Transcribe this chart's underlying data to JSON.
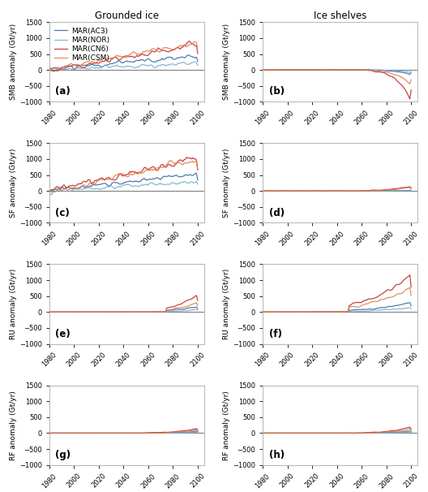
{
  "title_left": "Grounded ice",
  "title_right": "Ice shelves",
  "colors": {
    "AC3": "#3a6faa",
    "NOR": "#7ab0d0",
    "CN6": "#c0302a",
    "CSM": "#e08050"
  },
  "legend_labels": [
    "MAR(AC3)",
    "MAR(NOR)",
    "MAR(CN6)",
    "MAR(CSM)"
  ],
  "panel_labels": [
    "(a)",
    "(b)",
    "(c)",
    "(d)",
    "(e)",
    "(f)",
    "(g)",
    "(h)"
  ],
  "ylim": [
    -1000,
    1500
  ],
  "yticks": [
    -1000,
    -500,
    0,
    500,
    1000,
    1500
  ],
  "xlim": [
    1980,
    2105
  ],
  "xticks": [
    1980,
    2000,
    2020,
    2040,
    2060,
    2080,
    2100
  ],
  "ylabels": [
    "SMB anomaly (Gt/yr)",
    "SF anomaly (Gt/yr)",
    "RU anomaly (Gt/yr)",
    "RF anomaly (Gt/yr)"
  ],
  "hline_color": "#808080",
  "bg_color": "#ffffff",
  "fig_bg": "#ffffff",
  "spine_color": "#aaaaaa"
}
